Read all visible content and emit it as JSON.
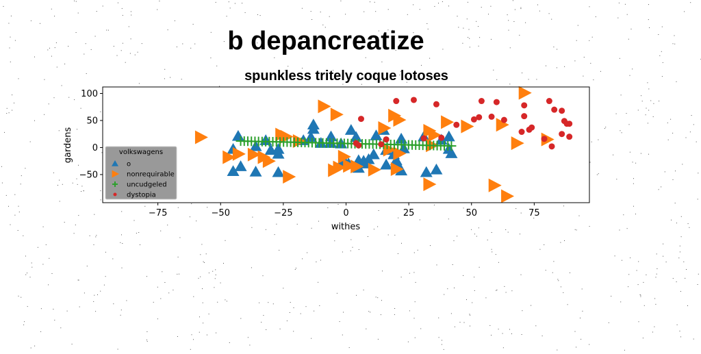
{
  "chart_data": {
    "type": "scatter",
    "suptitle": "b depancreatize",
    "title": "spunkless tritely coque lotoses",
    "xlabel": "withes",
    "ylabel": "gardens",
    "xlim": [
      -97,
      97
    ],
    "ylim": [
      -102,
      112
    ],
    "xticks": [
      "−75",
      "−50",
      "−25",
      "0",
      "25",
      "50",
      "75"
    ],
    "xtick_values": [
      -75,
      -50,
      -25,
      0,
      25,
      50,
      75
    ],
    "yticks": [
      "100",
      "50",
      "0",
      "−50"
    ],
    "ytick_values": [
      100,
      50,
      0,
      -50
    ],
    "grid": false,
    "legend": {
      "title": "volkswagens",
      "placement": "lower-left",
      "background": "#999999"
    },
    "series": [
      {
        "name": "o",
        "marker": "triangle-up",
        "color": "#1f77b4",
        "points": [
          [
            -43,
            21
          ],
          [
            -45,
            -3
          ],
          [
            -42,
            -35
          ],
          [
            -45,
            -44
          ],
          [
            -36,
            -45
          ],
          [
            -36,
            2
          ],
          [
            -32,
            13
          ],
          [
            -30,
            -5
          ],
          [
            -27,
            -3
          ],
          [
            -27,
            -12
          ],
          [
            -27,
            -46
          ],
          [
            -17,
            13
          ],
          [
            -14,
            19
          ],
          [
            -13,
            42
          ],
          [
            -13,
            34
          ],
          [
            -10,
            8
          ],
          [
            -6,
            8
          ],
          [
            -6,
            20
          ],
          [
            -2,
            7
          ],
          [
            -1,
            -22
          ],
          [
            -2,
            -30
          ],
          [
            1,
            -30
          ],
          [
            2,
            32
          ],
          [
            4,
            19
          ],
          [
            5,
            -24
          ],
          [
            5,
            -38
          ],
          [
            7,
            -25
          ],
          [
            7,
            -30
          ],
          [
            9,
            -22
          ],
          [
            11,
            -13
          ],
          [
            12,
            22
          ],
          [
            15,
            32
          ],
          [
            16,
            -5
          ],
          [
            16,
            -32
          ],
          [
            19,
            -13
          ],
          [
            20,
            -24
          ],
          [
            21,
            -35
          ],
          [
            22,
            16
          ],
          [
            22,
            -43
          ],
          [
            23,
            -2
          ],
          [
            31,
            20
          ],
          [
            32,
            -46
          ],
          [
            36,
            -41
          ],
          [
            38,
            14
          ],
          [
            41,
            20
          ],
          [
            41,
            -3
          ],
          [
            42,
            -11
          ]
        ]
      },
      {
        "name": "nonrequirable",
        "marker": "triangle-right",
        "color": "#ff7f0e",
        "points": [
          [
            -58,
            19
          ],
          [
            -47,
            -18
          ],
          [
            -43,
            -12
          ],
          [
            -37,
            -13
          ],
          [
            -33,
            -18
          ],
          [
            -31,
            -25
          ],
          [
            -26,
            24
          ],
          [
            -24,
            20
          ],
          [
            -23,
            -54
          ],
          [
            -19,
            12
          ],
          [
            -9,
            76
          ],
          [
            -5,
            -42
          ],
          [
            -4,
            61
          ],
          [
            -3,
            -37
          ],
          [
            -1,
            -17
          ],
          [
            1,
            -34
          ],
          [
            4,
            -35
          ],
          [
            11,
            -41
          ],
          [
            15,
            36
          ],
          [
            17,
            -4
          ],
          [
            19,
            59
          ],
          [
            20,
            -40
          ],
          [
            21,
            -11
          ],
          [
            21,
            51
          ],
          [
            33,
            31
          ],
          [
            34,
            4
          ],
          [
            33,
            -68
          ],
          [
            35,
            23
          ],
          [
            40,
            47
          ],
          [
            48,
            39
          ],
          [
            59,
            -70
          ],
          [
            62,
            42
          ],
          [
            64,
            -90
          ],
          [
            68,
            8
          ],
          [
            71,
            101
          ],
          [
            80,
            15
          ]
        ]
      },
      {
        "name": "uncudgeled",
        "marker": "plus",
        "color": "#2ca02c",
        "line": [
          [
            -42,
            12
          ],
          [
            42,
            3
          ]
        ],
        "count": 60
      },
      {
        "name": "dystopia",
        "marker": "circle",
        "color": "#d62728",
        "points": [
          [
            4,
            8
          ],
          [
            5,
            4
          ],
          [
            6,
            53
          ],
          [
            14,
            6
          ],
          [
            16,
            15
          ],
          [
            20,
            86
          ],
          [
            27,
            88
          ],
          [
            31,
            17
          ],
          [
            36,
            80
          ],
          [
            38,
            18
          ],
          [
            44,
            42
          ],
          [
            51,
            52
          ],
          [
            53,
            56
          ],
          [
            54,
            86
          ],
          [
            58,
            57
          ],
          [
            60,
            84
          ],
          [
            63,
            51
          ],
          [
            70,
            29
          ],
          [
            71,
            58
          ],
          [
            71,
            78
          ],
          [
            73,
            33
          ],
          [
            74,
            37
          ],
          [
            79,
            16
          ],
          [
            81,
            86
          ],
          [
            82,
            2
          ],
          [
            83,
            70
          ],
          [
            86,
            68
          ],
          [
            86,
            25
          ],
          [
            87,
            49
          ],
          [
            88,
            44
          ],
          [
            89,
            44
          ],
          [
            89,
            20
          ]
        ]
      }
    ]
  }
}
